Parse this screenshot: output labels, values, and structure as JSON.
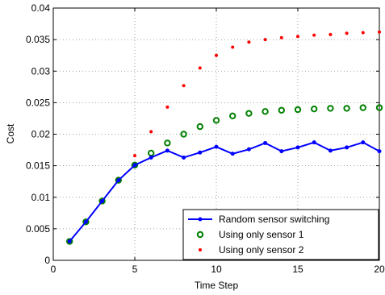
{
  "chart_data": {
    "type": "line",
    "title": "",
    "xlabel": "Time Step",
    "ylabel": "Cost",
    "xlim": [
      0,
      20
    ],
    "ylim": [
      0,
      0.04
    ],
    "xticks": [
      0,
      5,
      10,
      15,
      20
    ],
    "yticks": [
      0,
      0.005,
      0.01,
      0.015,
      0.02,
      0.025,
      0.03,
      0.035,
      0.04
    ],
    "xtick_labels": [
      "0",
      "5",
      "10",
      "15",
      "20"
    ],
    "ytick_labels": [
      "0",
      "0.005",
      "0.01",
      "0.015",
      "0.02",
      "0.025",
      "0.03",
      "0.035",
      "0.04"
    ],
    "grid": true,
    "legend_position": "bottom-right",
    "x": [
      1,
      2,
      3,
      4,
      5,
      6,
      7,
      8,
      9,
      10,
      11,
      12,
      13,
      14,
      15,
      16,
      17,
      18,
      19,
      20
    ],
    "series": [
      {
        "name": "Random sensor switching",
        "style": "line-dot",
        "color": "#0000ff",
        "values": [
          0.003,
          0.0061,
          0.0094,
          0.0127,
          0.0151,
          0.0163,
          0.0174,
          0.0163,
          0.0171,
          0.018,
          0.0169,
          0.0176,
          0.0186,
          0.0173,
          0.0179,
          0.0187,
          0.0174,
          0.0179,
          0.0187,
          0.0173
        ]
      },
      {
        "name": "Using only sensor 1",
        "style": "circle",
        "color": "#008000",
        "values": [
          0.003,
          0.0061,
          0.0094,
          0.0127,
          0.0151,
          0.017,
          0.0186,
          0.02,
          0.0212,
          0.0222,
          0.0229,
          0.0233,
          0.0236,
          0.0238,
          0.0239,
          0.024,
          0.0241,
          0.0241,
          0.0242,
          0.0242
        ]
      },
      {
        "name": "Using only sensor 2",
        "style": "dot",
        "color": "#ff0000",
        "values": [
          0.003,
          0.0061,
          0.0094,
          0.013,
          0.0166,
          0.0204,
          0.0243,
          0.0277,
          0.0305,
          0.0325,
          0.0338,
          0.0346,
          0.035,
          0.0353,
          0.0355,
          0.0357,
          0.0358,
          0.036,
          0.0361,
          0.0362
        ]
      }
    ]
  }
}
